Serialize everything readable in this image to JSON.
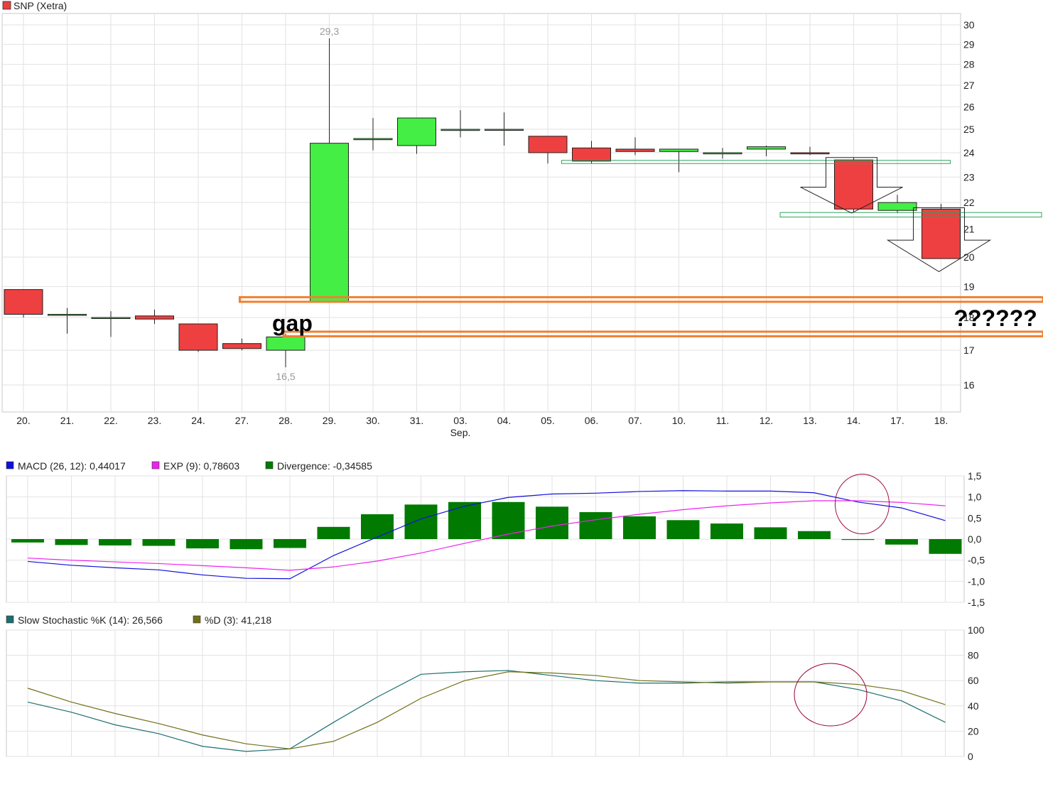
{
  "chart_data": [
    {
      "type": "candlestick",
      "title": "SNP (Xetra)",
      "title_color": "#e84040",
      "categories": [
        "20.",
        "21.",
        "22.",
        "23.",
        "24.",
        "27.",
        "28.",
        "29.",
        "30.",
        "31.",
        "03.",
        "04.",
        "05.",
        "06.",
        "07.",
        "10.",
        "11.",
        "12.",
        "13.",
        "14.",
        "17.",
        "18."
      ],
      "month_label": {
        "text": "Sep.",
        "under": "03."
      },
      "ylim": [
        15.2,
        30.4
      ],
      "yticks": [
        16,
        17,
        18,
        19,
        20,
        21,
        22,
        23,
        24,
        25,
        26,
        27,
        28,
        29,
        30
      ],
      "log_scale": true,
      "grid": true,
      "up_color": "#44ee44",
      "down_color": "#ee4040",
      "candles": [
        {
          "o": 18.9,
          "h": 18.9,
          "l": 18.0,
          "c": 18.1
        },
        {
          "o": 18.1,
          "h": 18.3,
          "l": 17.5,
          "c": 18.1
        },
        {
          "o": 18.0,
          "h": 18.2,
          "l": 17.4,
          "c": 18.0
        },
        {
          "o": 18.05,
          "h": 18.25,
          "l": 17.8,
          "c": 17.95
        },
        {
          "o": 17.8,
          "h": 17.8,
          "l": 16.95,
          "c": 17.0
        },
        {
          "o": 17.2,
          "h": 17.35,
          "l": 17.0,
          "c": 17.05
        },
        {
          "o": 17.0,
          "h": 17.5,
          "l": 16.5,
          "c": 17.4
        },
        {
          "o": 18.5,
          "h": 29.3,
          "l": 18.5,
          "c": 24.4
        },
        {
          "o": 24.55,
          "h": 25.5,
          "l": 24.1,
          "c": 24.6
        },
        {
          "o": 24.3,
          "h": 25.5,
          "l": 23.95,
          "c": 25.5
        },
        {
          "o": 24.95,
          "h": 25.85,
          "l": 24.65,
          "c": 25.0
        },
        {
          "o": 25.0,
          "h": 25.75,
          "l": 24.3,
          "c": 25.0
        },
        {
          "o": 24.7,
          "h": 24.7,
          "l": 23.55,
          "c": 24.0
        },
        {
          "o": 24.2,
          "h": 24.5,
          "l": 23.55,
          "c": 23.65
        },
        {
          "o": 24.15,
          "h": 24.65,
          "l": 23.9,
          "c": 24.05
        },
        {
          "o": 24.05,
          "h": 24.15,
          "l": 23.2,
          "c": 24.15
        },
        {
          "o": 23.95,
          "h": 24.2,
          "l": 23.75,
          "c": 24.0
        },
        {
          "o": 24.15,
          "h": 24.3,
          "l": 23.85,
          "c": 24.25
        },
        {
          "o": 24.0,
          "h": 24.25,
          "l": 23.9,
          "c": 23.95
        },
        {
          "o": 23.7,
          "h": 23.8,
          "l": 21.65,
          "c": 21.75
        },
        {
          "o": 21.7,
          "h": 22.3,
          "l": 21.6,
          "c": 22.0
        },
        {
          "o": 21.75,
          "h": 21.95,
          "l": 19.95,
          "c": 19.95
        }
      ],
      "data_labels": [
        {
          "text": "29,3",
          "category": "29.",
          "value": 29.3,
          "position": "above"
        },
        {
          "text": "16,5",
          "category": "28.",
          "value": 16.5,
          "position": "below"
        }
      ],
      "annotations": [
        {
          "kind": "band",
          "from_category": "27.",
          "y_low": 18.5,
          "y_high": 18.65,
          "color": "#f08030"
        },
        {
          "kind": "band",
          "from_category": "28.",
          "y_low": 17.42,
          "y_high": 17.56,
          "color": "#f08030"
        },
        {
          "kind": "text",
          "text": "gap",
          "category": "28.",
          "value": 17.8
        },
        {
          "kind": "text",
          "text": "??????",
          "category": "18.",
          "value": 17.95
        },
        {
          "kind": "box",
          "from_category": "06.",
          "to_category": "18.",
          "y_low": 23.55,
          "y_high": 23.68,
          "color": "#30a060"
        },
        {
          "kind": "box",
          "from_category": "13.",
          "to_category": "right-edge",
          "y_low": 21.45,
          "y_high": 21.62,
          "color": "#30a060"
        },
        {
          "kind": "arrow-down",
          "category": "14.",
          "y_top": 23.8,
          "y_head": 22.6,
          "y_tip": 21.6
        },
        {
          "kind": "arrow-down",
          "category": "18.",
          "y_top": 21.8,
          "y_head": 20.6,
          "y_tip": 19.5
        }
      ]
    },
    {
      "type": "bar+line",
      "legend": [
        {
          "label": "MACD (26, 12): 0,44017",
          "color": "#1010dd"
        },
        {
          "label": "EXP (9): 0,78603",
          "color": "#ee22ee"
        },
        {
          "label": "Divergence: -0,34585",
          "color": "#007a00"
        }
      ],
      "ylim": [
        -1.5,
        1.5
      ],
      "yticks": [
        -1.5,
        -1.0,
        -0.5,
        0.0,
        0.5,
        1.0,
        1.5
      ],
      "ytick_labels": [
        "-1,5",
        "-1,0",
        "-0,5",
        "0,0",
        "0,5",
        "1,0",
        "1,5"
      ],
      "grid": true,
      "series": [
        {
          "name": "MACD (26, 12)",
          "type": "line",
          "color": "#1010dd",
          "values": [
            -0.53,
            -0.62,
            -0.68,
            -0.73,
            -0.85,
            -0.93,
            -0.94,
            -0.39,
            0.05,
            0.48,
            0.78,
            0.99,
            1.07,
            1.09,
            1.13,
            1.15,
            1.14,
            1.14,
            1.1,
            0.88,
            0.74,
            0.44
          ]
        },
        {
          "name": "EXP (9)",
          "type": "line",
          "color": "#ee22ee",
          "values": [
            -0.45,
            -0.5,
            -0.54,
            -0.58,
            -0.63,
            -0.68,
            -0.74,
            -0.66,
            -0.52,
            -0.33,
            -0.1,
            0.12,
            0.31,
            0.46,
            0.59,
            0.7,
            0.79,
            0.86,
            0.91,
            0.91,
            0.87,
            0.79
          ]
        },
        {
          "name": "Divergence",
          "type": "bar",
          "color": "#007a00",
          "values": [
            -0.08,
            -0.14,
            -0.15,
            -0.16,
            -0.22,
            -0.24,
            -0.21,
            0.29,
            0.59,
            0.82,
            0.88,
            0.88,
            0.77,
            0.64,
            0.54,
            0.45,
            0.37,
            0.28,
            0.19,
            -0.02,
            -0.13,
            -0.35
          ]
        }
      ],
      "annotations": [
        {
          "kind": "ellipse",
          "category": "14.",
          "value": 0.9,
          "color": "#990033"
        }
      ]
    },
    {
      "type": "line",
      "legend": [
        {
          "label": "Slow Stochastic %K (14): 26,566",
          "color": "#1e6e6e"
        },
        {
          "label": "%D (3): 41,218",
          "color": "#707018"
        }
      ],
      "ylim": [
        0,
        100
      ],
      "yticks": [
        0,
        20,
        40,
        60,
        80,
        100
      ],
      "ytick_labels": [
        "0",
        "20",
        "40",
        "60",
        "80",
        "100"
      ],
      "grid": true,
      "series": [
        {
          "name": "Slow Stochastic %K (14)",
          "color": "#1e6e6e",
          "values": [
            43,
            35,
            25,
            18,
            8,
            4,
            6,
            27,
            47,
            65,
            67,
            68,
            64,
            60,
            58,
            58,
            59,
            59,
            59,
            53,
            44,
            27
          ]
        },
        {
          "name": "%D (3)",
          "color": "#707018",
          "values": [
            54,
            43,
            34,
            26,
            17,
            10,
            6,
            12,
            27,
            46,
            60,
            67,
            66,
            64,
            60,
            59,
            58,
            59,
            59,
            57,
            52,
            41
          ]
        }
      ],
      "annotations": [
        {
          "kind": "ellipse",
          "category": "13.",
          "value": 50,
          "color": "#990033"
        }
      ]
    }
  ]
}
